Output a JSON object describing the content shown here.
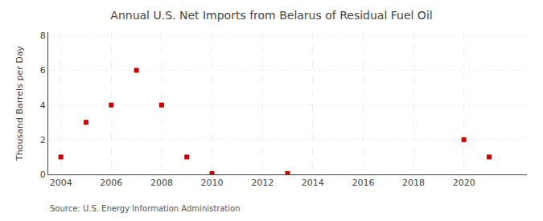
{
  "chart_data": {
    "type": "scatter",
    "title": "Annual U.S. Net Imports from Belarus of Residual Fuel Oil",
    "ylabel": "Thousand Barrels per Day",
    "source": "Source: U.S. Energy Information Administration",
    "x": [
      2004,
      2005,
      2006,
      2007,
      2008,
      2009,
      2010,
      2013,
      2020,
      2021
    ],
    "values": [
      1,
      3,
      4,
      6,
      4,
      1,
      0.05,
      0.05,
      2,
      1
    ],
    "color": "#cc0000",
    "marker": "square",
    "xlim": [
      2003.5,
      2022.5
    ],
    "xticks": [
      2004,
      2006,
      2008,
      2010,
      2012,
      2014,
      2016,
      2018,
      2020
    ],
    "ylim": [
      0,
      8.2
    ],
    "yticks": [
      0,
      2,
      4,
      6,
      8
    ],
    "grid": true
  }
}
